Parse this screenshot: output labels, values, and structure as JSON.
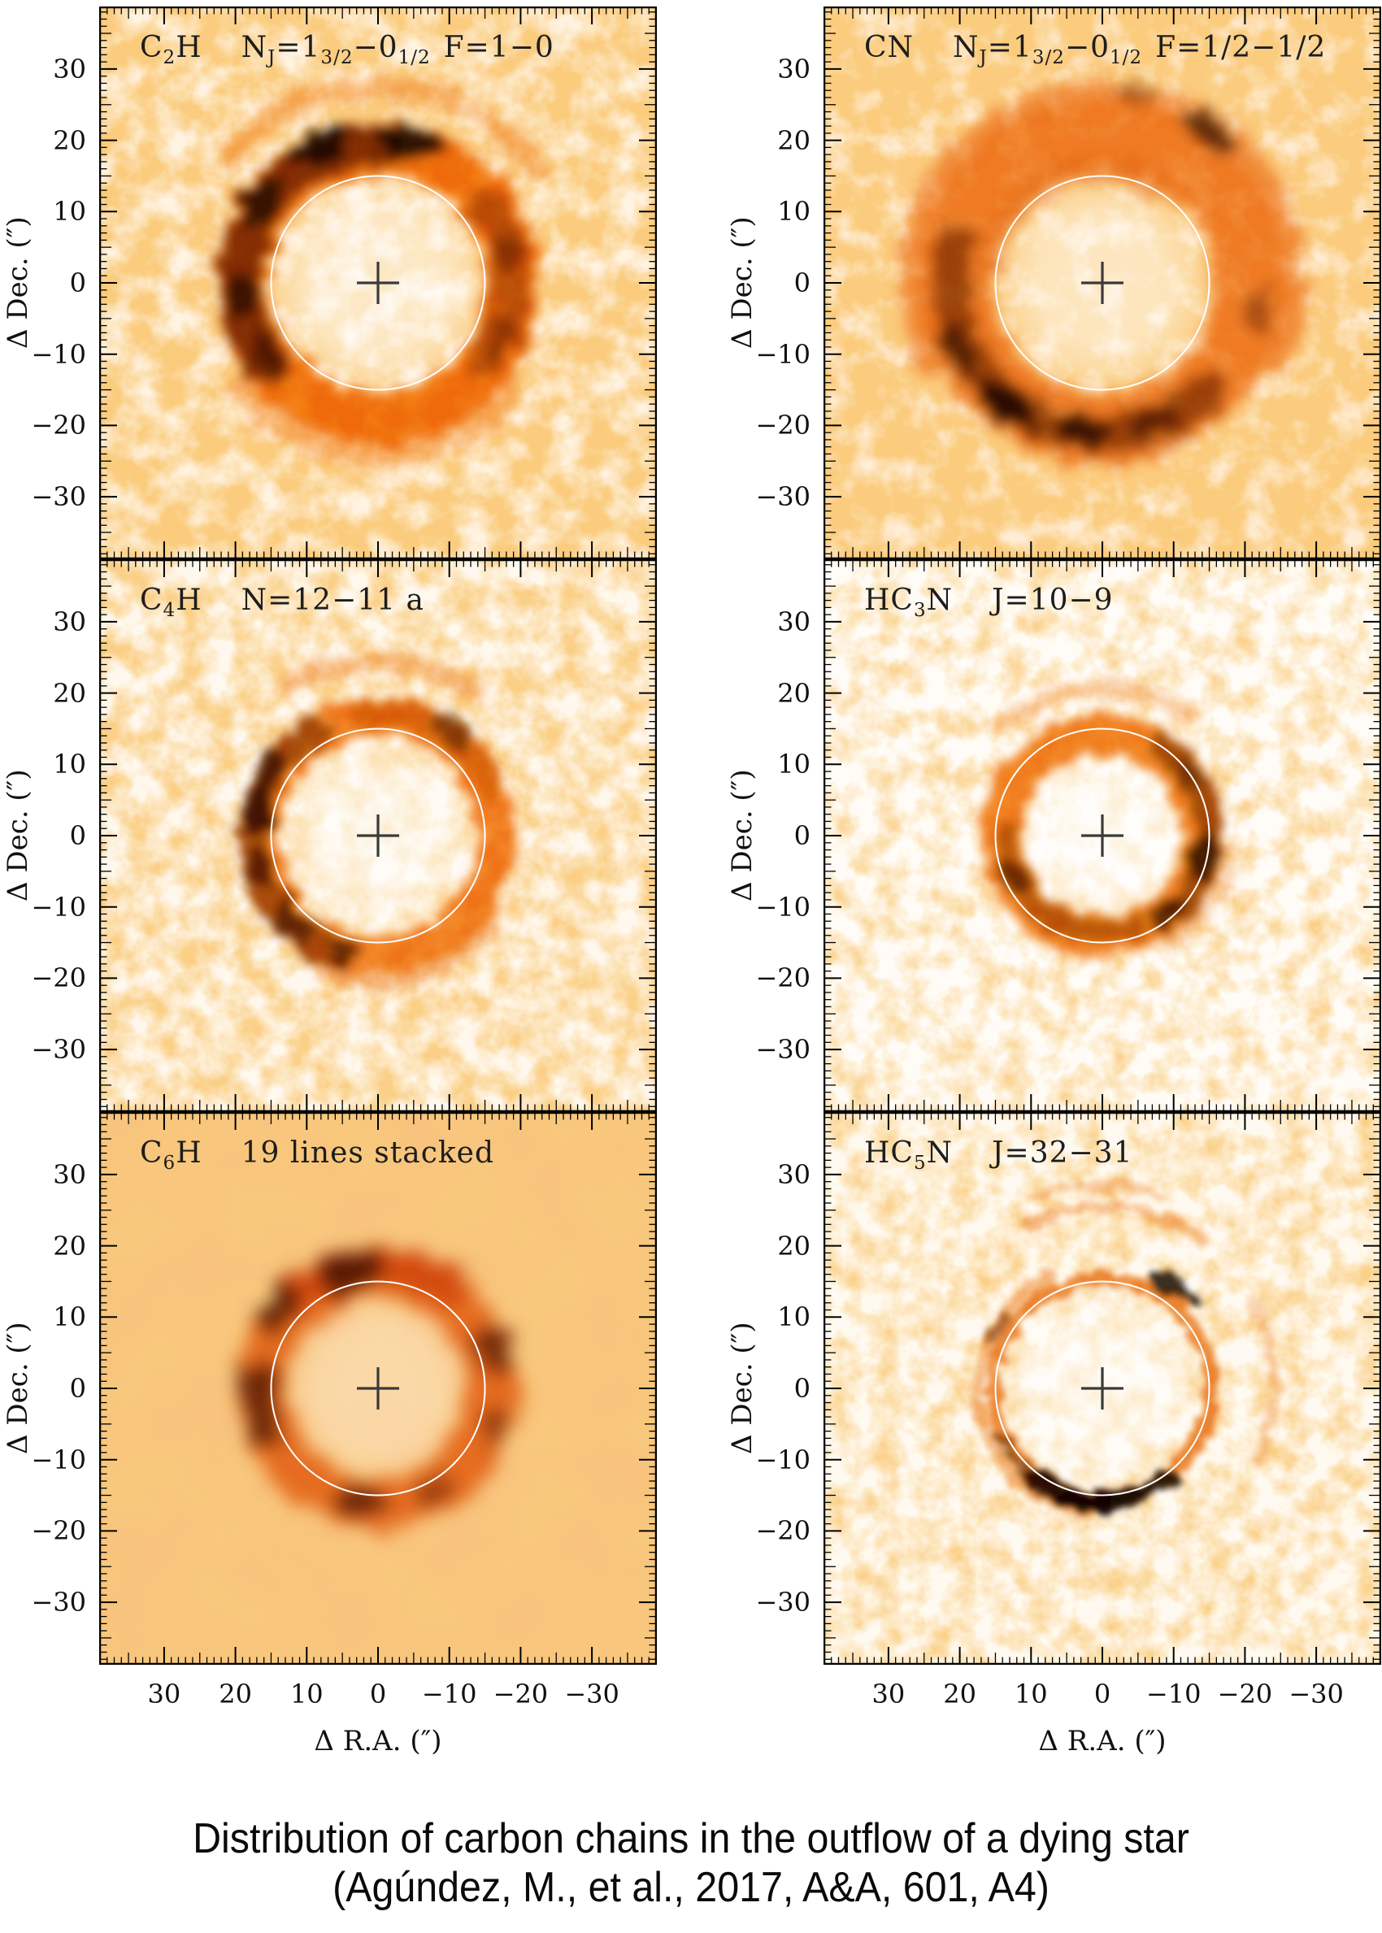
{
  "figure": {
    "caption_line1": "Distribution of carbon chains in the outflow of a dying star",
    "caption_line2": "(Agúndez, M., et al., 2017, A&A, 601, A4)"
  },
  "axes": {
    "x_label": "Δ R.A. (″)",
    "y_label": "Δ Dec. (″)",
    "tick_values": [
      30,
      20,
      10,
      0,
      -10,
      -20,
      -30
    ],
    "tick_labels": [
      "30",
      "20",
      "10",
      "0",
      "−10",
      "−20",
      "−30"
    ],
    "range_arcsec": [
      -39,
      39
    ],
    "minor_tick_step_arcsec": 1,
    "medium_tick_step_arcsec": 5,
    "major_tick_step_arcsec": 10
  },
  "palette": {
    "page_bg": "#ffffff",
    "axis": "#000000",
    "colormap_low": "#ffffff",
    "colormap_mid": "#f79c3a",
    "colormap_high": "#e35d00",
    "colormap_peak": "#1a0800",
    "reference_circle": "#ffffff",
    "center_marker": "#3a3a3a"
  },
  "chart_data": {
    "type": "heatmap",
    "description": "Six interferometric emission maps of carbon-chain molecules around the carbon star, shown with an inverted orange colour scale. Each map has a white reference circle of 15 arcsec radius and a cross marking the star at offset (0,0).",
    "reference_circle_radius_arcsec": 15,
    "center_marker_offset": [
      0,
      0
    ],
    "panels": [
      {
        "id": "c2h",
        "molecule_plain": "C2H",
        "transition_plain": "NJ=1(3/2)-0(1/2) F=1-0",
        "molecule": [
          [
            "t",
            "C"
          ],
          [
            "s",
            "2"
          ],
          [
            "t",
            "H"
          ]
        ],
        "transition": [
          [
            "t",
            "N"
          ],
          [
            "s",
            "J"
          ],
          [
            "t",
            "=1"
          ],
          [
            "s",
            "3/2"
          ],
          [
            "t",
            "−0"
          ],
          [
            "s",
            "1/2"
          ],
          [
            "g",
            ""
          ],
          [
            "t",
            "F=1−0"
          ]
        ],
        "ring_radius_arcsec": 19,
        "render": {
          "bg": {
            "bf": 0.027,
            "oct": 4,
            "seed": 11,
            "gain": 2.3,
            "bias": -0.5,
            "blur": 0.7,
            "color": "#f59a35",
            "tint": "#fff3e2"
          },
          "glow": [
            118,
            0.55
          ],
          "distort": 36,
          "rblur": 7,
          "layers": [
            [
              "c",
              166,
              64,
              "#f27a00",
              0.92
            ],
            [
              "a",
              170,
              90,
              215,
              52,
              "#6b2300",
              0.8
            ],
            [
              "a",
              164,
              -35,
              35,
              44,
              "#8f3300",
              0.55
            ],
            [
              "a",
              240,
              35,
              140,
              26,
              "#f6952e",
              0.5
            ],
            [
              "a",
              212,
              215,
              320,
              30,
              "#f6952e",
              0.45
            ]
          ],
          "clumps": [
            [
              78,
              176,
              44,
              22,
              "#190800",
              0.9
            ],
            [
              112,
              182,
              40,
              22,
              "#190800",
              0.85
            ],
            [
              145,
              174,
              36,
              20,
              "#2b0e00",
              0.85
            ],
            [
              185,
              166,
              30,
              22,
              "#2b0e00",
              0.8
            ],
            [
              212,
              160,
              26,
              16,
              "#401400",
              0.7
            ],
            [
              15,
              162,
              30,
              18,
              "#6b2300",
              0.6
            ],
            [
              335,
              168,
              26,
              16,
              "#6b2300",
              0.55
            ]
          ]
        }
      },
      {
        "id": "cn",
        "molecule_plain": "CN",
        "transition_plain": "NJ=1(3/2)-0(1/2) F=1/2-1/2",
        "molecule": [
          [
            "t",
            "CN"
          ]
        ],
        "transition": [
          [
            "t",
            "N"
          ],
          [
            "s",
            "J"
          ],
          [
            "t",
            "=1"
          ],
          [
            "s",
            "3/2"
          ],
          [
            "t",
            "−0"
          ],
          [
            "s",
            "1/2"
          ],
          [
            "g",
            ""
          ],
          [
            "t",
            "F=1/2−1/2"
          ]
        ],
        "ring_radius_arcsec": 20,
        "render": {
          "bg": {
            "bf": 0.027,
            "oct": 4,
            "seed": 23,
            "gain": 2.5,
            "bias": -0.4,
            "blur": 0.7,
            "color": "#f59a35",
            "tint": "#ffedd6"
          },
          "glow": [
            112,
            0.5
          ],
          "distort": 34,
          "rblur": 8,
          "layers": [
            [
              "c",
              180,
              86,
              "#f08018",
              0.8
            ],
            [
              "a",
              232,
              -25,
              205,
              36,
              "#ef8422",
              0.65
            ],
            [
              "a",
              186,
              165,
              315,
              46,
              "#702800",
              0.65
            ],
            [
              "a",
              140,
              60,
              170,
              30,
              "#e87712",
              0.5
            ]
          ],
          "clumps": [
            [
              232,
              192,
              46,
              24,
              "#190800",
              0.85
            ],
            [
              262,
              184,
              36,
              20,
              "#2b0e00",
              0.8
            ],
            [
              205,
              196,
              34,
              20,
              "#3c1200",
              0.7
            ],
            [
              290,
              180,
              30,
              18,
              "#3c1200",
              0.6
            ],
            [
              55,
              230,
              40,
              18,
              "#2b0e00",
              0.7
            ],
            [
              80,
              236,
              30,
              14,
              "#512000",
              0.5
            ],
            [
              350,
              196,
              28,
              16,
              "#702800",
              0.5
            ]
          ]
        }
      },
      {
        "id": "c4h",
        "molecule_plain": "C4H",
        "transition_plain": "N=12-11 a",
        "molecule": [
          [
            "t",
            "C"
          ],
          [
            "s",
            "4"
          ],
          [
            "t",
            "H"
          ]
        ],
        "transition": [
          [
            "t",
            "N=12−11 a"
          ]
        ],
        "ring_radius_arcsec": 17,
        "render": {
          "bg": {
            "bf": 0.03,
            "oct": 4,
            "seed": 37,
            "gain": 2.1,
            "bias": -0.58,
            "blur": 0.6,
            "color": "#f5a03d",
            "tint": "#fff8ee"
          },
          "glow": [
            108,
            0.6
          ],
          "distort": 30,
          "rblur": 6,
          "layers": [
            [
              "c",
              146,
              46,
              "#f17c08",
              0.88
            ],
            [
              "a",
              152,
              120,
              250,
              38,
              "#7a2c00",
              0.6
            ],
            [
              "a",
              150,
              25,
              95,
              34,
              "#c85600",
              0.55
            ],
            [
              "a",
              214,
              55,
              120,
              22,
              "#f29336",
              0.45
            ],
            [
              "a",
              176,
              250,
              320,
              26,
              "#ef8a28",
              0.5
            ]
          ],
          "clumps": [
            [
              168,
              152,
              34,
              18,
              "#2b0e00",
              0.8
            ],
            [
              148,
              156,
              28,
              16,
              "#2b0e00",
              0.7
            ],
            [
              195,
              148,
              26,
              16,
              "#401400",
              0.7
            ],
            [
              225,
              150,
              30,
              16,
              "#401400",
              0.65
            ],
            [
              55,
              158,
              30,
              16,
              "#512000",
              0.6
            ],
            [
              252,
              146,
              22,
              14,
              "#401400",
              0.6
            ]
          ]
        }
      },
      {
        "id": "hc3n",
        "molecule_plain": "HC3N",
        "transition_plain": "J=10-9",
        "molecule": [
          [
            "t",
            "HC"
          ],
          [
            "s",
            "3"
          ],
          [
            "t",
            "N"
          ]
        ],
        "transition": [
          [
            "t",
            "J=10−9"
          ]
        ],
        "ring_radius_arcsec": 14,
        "render": {
          "bg": {
            "bf": 0.032,
            "oct": 4,
            "seed": 51,
            "gain": 1.9,
            "bias": -0.7,
            "blur": 0.6,
            "color": "#f5a03d",
            "tint": "#fffcf7"
          },
          "glow": [
            96,
            0.65
          ],
          "distort": 26,
          "rblur": 6,
          "layers": [
            [
              "c",
              124,
              50,
              "#f17c08",
              0.9
            ],
            [
              "a",
              130,
              -45,
              55,
              34,
              "#702600",
              0.6
            ],
            [
              "a",
              118,
              180,
              290,
              28,
              "#8f3700",
              0.55
            ],
            [
              "a",
              182,
              55,
              135,
              20,
              "#f29336",
              0.4
            ],
            [
              "a",
              160,
              300,
              355,
              16,
              "#ef8a28",
              0.35
            ]
          ],
          "clumps": [
            [
              -12,
              128,
              30,
              18,
              "#2b0e00",
              0.75
            ],
            [
              310,
              126,
              26,
              16,
              "#2b0e00",
              0.7
            ],
            [
              205,
              120,
              24,
              14,
              "#401400",
              0.6
            ],
            [
              35,
              130,
              22,
              14,
              "#512000",
              0.5
            ]
          ]
        }
      },
      {
        "id": "c6h",
        "molecule_plain": "C6H",
        "transition_plain": "19 lines stacked",
        "molecule": [
          [
            "t",
            "C"
          ],
          [
            "s",
            "6"
          ],
          [
            "t",
            "H"
          ]
        ],
        "transition": [
          [
            "t",
            "19 lines stacked"
          ]
        ],
        "ring_radius_arcsec": 16,
        "render": {
          "bg": {
            "bf": 0.012,
            "oct": 3,
            "seed": 63,
            "gain": 1.5,
            "bias": 0.02,
            "blur": 5,
            "color": "#ef9334",
            "tint": "#f9c07e"
          },
          "glow": [
            104,
            0.32
          ],
          "distort": 40,
          "rblur": 11,
          "layers": [
            [
              "c",
              141,
              60,
              "#e66300",
              0.75
            ],
            [
              "a",
              152,
              55,
              135,
              50,
              "#cc4400",
              0.6
            ]
          ],
          "clumps": [
            [
              103,
              148,
              40,
              26,
              "#3c1200",
              0.8
            ],
            [
              140,
              154,
              34,
              24,
              "#471600",
              0.8
            ],
            [
              178,
              150,
              30,
              24,
              "#471600",
              0.75
            ],
            [
              200,
              146,
              28,
              20,
              "#3c1200",
              0.7
            ],
            [
              262,
              140,
              34,
              22,
              "#471600",
              0.75
            ],
            [
              298,
              142,
              26,
              18,
              "#5c1e00",
              0.6
            ],
            [
              18,
              148,
              32,
              22,
              "#471600",
              0.7
            ],
            [
              342,
              150,
              26,
              18,
              "#5c1e00",
              0.6
            ]
          ]
        }
      },
      {
        "id": "hc5n",
        "molecule_plain": "HC5N",
        "transition_plain": "J=32-31",
        "molecule": [
          [
            "t",
            "HC"
          ],
          [
            "s",
            "5"
          ],
          [
            "t",
            "N"
          ]
        ],
        "transition": [
          [
            "t",
            "J=32−31"
          ]
        ],
        "ring_radius_arcsec": 15,
        "render": {
          "bg": {
            "bf": 0.032,
            "oct": 4,
            "seed": 77,
            "gain": 1.95,
            "bias": -0.65,
            "blur": 0.6,
            "color": "#f5a03d",
            "tint": "#fffaf1"
          },
          "glow": [
            112,
            0.55
          ],
          "distort": 24,
          "rblur": 4,
          "layers": [
            [
              "c",
              134,
              17,
              "#ea770c",
              0.8
            ],
            [
              "a",
              152,
              115,
              265,
              14,
              "#ed8018",
              0.5
            ],
            [
              "a",
              136,
              232,
              308,
              20,
              "#1d0b00",
              0.9
            ],
            [
              "a",
              140,
              205,
              235,
              12,
              "#552000",
              0.55
            ],
            [
              "a",
              222,
              55,
              115,
              13,
              "#f0903a",
              0.5
            ],
            [
              "a",
              212,
              -25,
              30,
              12,
              "#f0903a",
              0.35
            ],
            [
              "a",
              250,
              72,
              108,
              11,
              "#ef8a28",
              0.4
            ]
          ],
          "clumps": [
            [
              55,
              152,
              34,
              14,
              "#190800",
              0.85
            ],
            [
              262,
              140,
              40,
              14,
              "#0f0500",
              0.9
            ],
            [
              285,
              138,
              30,
              12,
              "#190800",
              0.8
            ],
            [
              238,
              142,
              26,
              12,
              "#2b0e00",
              0.7
            ],
            [
              150,
              150,
              22,
              10,
              "#702800",
              0.5
            ]
          ]
        }
      }
    ]
  }
}
